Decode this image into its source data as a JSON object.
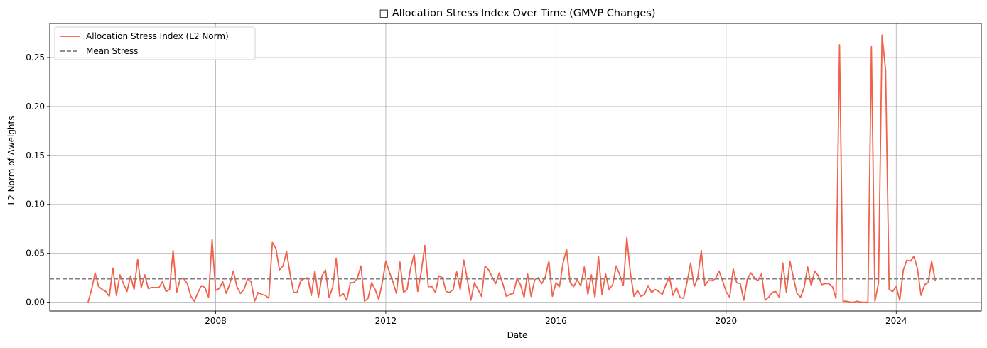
{
  "chart_data": {
    "type": "line",
    "title": "□ Allocation Stress Index Over Time (GMVP Changes)",
    "xlabel": "Date",
    "ylabel": "L2 Norm of Δweights",
    "x_ticks": [
      "2008",
      "2012",
      "2016",
      "2020",
      "2024"
    ],
    "y_ticks": [
      "0.00",
      "0.05",
      "0.10",
      "0.15",
      "0.20",
      "0.25"
    ],
    "xlim": [
      2004.1,
      2026.0
    ],
    "ylim": [
      -0.009,
      0.2848
    ],
    "grid": true,
    "legend_position": "top-left",
    "series": [
      {
        "name": "Allocation Stress Index (L2 Norm)",
        "color": "#f2614a",
        "start": "2005-01",
        "interval": "month",
        "values": [
          0.0,
          0.013,
          0.03,
          0.016,
          0.013,
          0.011,
          0.006,
          0.035,
          0.007,
          0.028,
          0.019,
          0.011,
          0.027,
          0.013,
          0.044,
          0.015,
          0.028,
          0.014,
          0.015,
          0.015,
          0.015,
          0.021,
          0.011,
          0.013,
          0.053,
          0.01,
          0.024,
          0.024,
          0.019,
          0.006,
          0.001,
          0.01,
          0.017,
          0.015,
          0.005,
          0.064,
          0.012,
          0.014,
          0.021,
          0.009,
          0.019,
          0.032,
          0.016,
          0.009,
          0.013,
          0.024,
          0.021,
          0.001,
          0.01,
          0.008,
          0.007,
          0.004,
          0.061,
          0.055,
          0.033,
          0.037,
          0.052,
          0.029,
          0.01,
          0.01,
          0.022,
          0.024,
          0.025,
          0.007,
          0.032,
          0.005,
          0.027,
          0.033,
          0.005,
          0.015,
          0.045,
          0.006,
          0.009,
          0.002,
          0.02,
          0.02,
          0.025,
          0.037,
          0.001,
          0.004,
          0.02,
          0.013,
          0.003,
          0.02,
          0.042,
          0.031,
          0.021,
          0.009,
          0.041,
          0.01,
          0.013,
          0.035,
          0.049,
          0.011,
          0.031,
          0.058,
          0.016,
          0.016,
          0.01,
          0.027,
          0.025,
          0.011,
          0.01,
          0.013,
          0.031,
          0.013,
          0.043,
          0.023,
          0.002,
          0.02,
          0.013,
          0.006,
          0.037,
          0.033,
          0.026,
          0.019,
          0.03,
          0.019,
          0.006,
          0.008,
          0.009,
          0.024,
          0.018,
          0.005,
          0.029,
          0.006,
          0.023,
          0.025,
          0.019,
          0.026,
          0.042,
          0.006,
          0.02,
          0.016,
          0.04,
          0.054,
          0.02,
          0.016,
          0.023,
          0.017,
          0.036,
          0.008,
          0.028,
          0.005,
          0.047,
          0.008,
          0.029,
          0.013,
          0.018,
          0.037,
          0.028,
          0.017,
          0.066,
          0.03,
          0.006,
          0.012,
          0.006,
          0.008,
          0.017,
          0.01,
          0.013,
          0.011,
          0.008,
          0.018,
          0.026,
          0.007,
          0.015,
          0.005,
          0.004,
          0.021,
          0.04,
          0.016,
          0.025,
          0.053,
          0.017,
          0.022,
          0.022,
          0.024,
          0.032,
          0.022,
          0.011,
          0.005,
          0.034,
          0.02,
          0.019,
          0.002,
          0.024,
          0.03,
          0.025,
          0.022,
          0.029,
          0.002,
          0.005,
          0.01,
          0.011,
          0.005,
          0.04,
          0.01,
          0.042,
          0.025,
          0.009,
          0.005,
          0.015,
          0.036,
          0.017,
          0.032,
          0.027,
          0.018,
          0.019,
          0.019,
          0.016,
          0.004,
          0.263,
          0.001,
          0.001,
          0.0,
          0.0,
          0.001,
          0.0,
          0.0,
          0.0,
          0.261,
          0.001,
          0.02,
          0.273,
          0.237,
          0.013,
          0.011,
          0.016,
          0.002,
          0.033,
          0.043,
          0.042,
          0.047,
          0.034,
          0.007,
          0.018,
          0.02,
          0.042,
          0.022
        ]
      },
      {
        "name": "Mean Stress",
        "color": "#808080",
        "style": "dashed",
        "constant": 0.0239
      }
    ]
  }
}
